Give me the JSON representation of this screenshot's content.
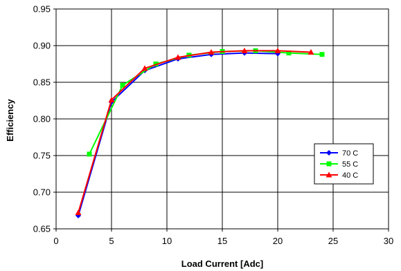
{
  "chart_data": {
    "type": "line",
    "xlabel": "Load Current [Adc]",
    "ylabel": "Efficiency",
    "xlim": [
      0,
      30
    ],
    "ylim": [
      0.65,
      0.95
    ],
    "x_ticks": [
      0,
      5,
      10,
      15,
      20,
      25,
      30
    ],
    "y_ticks": [
      0.65,
      0.7,
      0.75,
      0.8,
      0.85,
      0.9,
      0.95
    ],
    "x_tick_labels": [
      "0",
      "5",
      "10",
      "15",
      "20",
      "25",
      "30"
    ],
    "y_tick_labels": [
      "0.65",
      "0.70",
      "0.75",
      "0.80",
      "0.85",
      "0.90",
      "0.95"
    ],
    "grid": true,
    "legend_position": "lower-right",
    "series": [
      {
        "name": "70 C",
        "color": "#0000ff",
        "marker": "diamond",
        "points": [
          [
            2,
            0.668
          ],
          [
            5,
            0.823
          ],
          [
            8,
            0.866
          ],
          [
            11,
            0.882
          ],
          [
            14,
            0.888
          ],
          [
            17,
            0.89
          ],
          [
            20,
            0.889
          ]
        ]
      },
      {
        "name": "55 C",
        "color": "#00ff00",
        "marker": "square",
        "points": [
          [
            3,
            0.752
          ],
          [
            6,
            0.846
          ],
          [
            9,
            0.875
          ],
          [
            12,
            0.887
          ],
          [
            15,
            0.892
          ],
          [
            18,
            0.893
          ],
          [
            21,
            0.89
          ],
          [
            24,
            0.888
          ]
        ]
      },
      {
        "name": "40 C",
        "color": "#ff0000",
        "marker": "triangle",
        "points": [
          [
            2,
            0.672
          ],
          [
            5,
            0.826
          ],
          [
            8,
            0.869
          ],
          [
            11,
            0.884
          ],
          [
            14,
            0.891
          ],
          [
            17,
            0.893
          ],
          [
            20,
            0.893
          ],
          [
            23,
            0.891
          ]
        ]
      }
    ]
  }
}
